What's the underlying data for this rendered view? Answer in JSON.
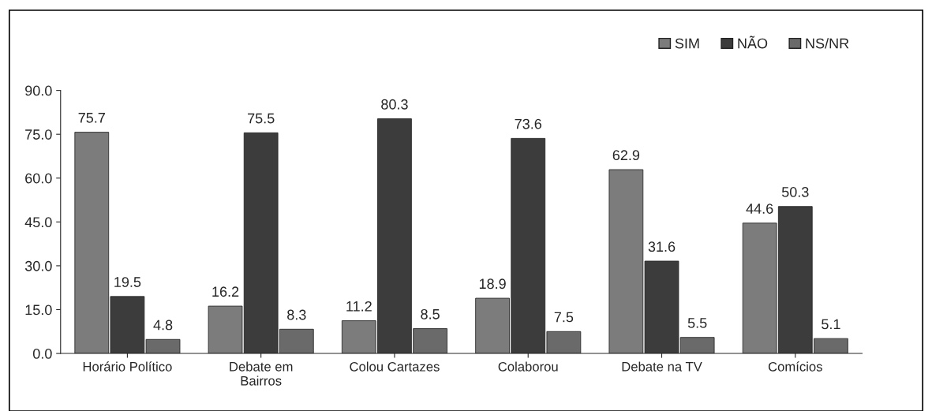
{
  "chart_data": {
    "type": "bar",
    "categories": [
      "Horário Político",
      "Debate em\nBairros",
      "Colou Cartazes",
      "Colaborou",
      "Debate na TV",
      "Comícios"
    ],
    "series": [
      {
        "name": "SIM",
        "color": "#7c7c7c",
        "values": [
          75.7,
          16.2,
          11.2,
          18.9,
          62.9,
          44.6
        ]
      },
      {
        "name": "NÃO",
        "color": "#3c3c3c",
        "values": [
          19.5,
          75.5,
          80.3,
          73.6,
          31.6,
          50.3
        ]
      },
      {
        "name": "NS/NR",
        "color": "#6a6a6a",
        "values": [
          4.8,
          8.3,
          8.5,
          7.5,
          5.5,
          5.1
        ]
      }
    ],
    "ylim": [
      0,
      90
    ],
    "yticks": [
      {
        "value": 0,
        "label": "0.0"
      },
      {
        "value": 15,
        "label": "15.0"
      },
      {
        "value": 30,
        "label": "30.0"
      },
      {
        "value": 45,
        "label": "45.0"
      },
      {
        "value": 60,
        "label": "60.0"
      },
      {
        "value": 75,
        "label": "75.0"
      },
      {
        "value": 90,
        "label": "90.0"
      }
    ],
    "data_labels": true,
    "legend": "top right",
    "grid": false
  }
}
